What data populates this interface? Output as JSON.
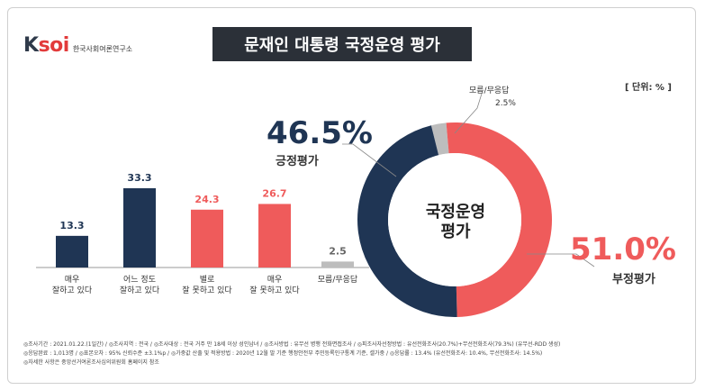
{
  "logo": {
    "mark_a": "K",
    "mark_b": "soi",
    "sub": "한국사회여론연구소"
  },
  "title": "문재인 대통령 국정운영 평가",
  "unit": "[ 단위: % ]",
  "donut": {
    "center_line1": "국정운영",
    "center_line2": "평가",
    "positive": {
      "big": "46.5%",
      "label": "긍정평가",
      "value": 46.5,
      "color": "#1f3554"
    },
    "negative": {
      "big": "51.0%",
      "label": "부정평가",
      "value": 51.0,
      "color": "#ef5b5b"
    },
    "dontknow": {
      "label": "모름/무응답",
      "value_text": "2.5%",
      "value": 2.5,
      "color": "#bdbdbd"
    }
  },
  "chart_data": {
    "type": "bar",
    "categories": [
      "매우\n잘하고 있다",
      "어느 정도\n잘하고 있다",
      "별로\n잘 못하고 있다",
      "매우\n잘 못하고 있다",
      "모름/무응답"
    ],
    "values": [
      13.3,
      33.3,
      24.3,
      26.7,
      2.5
    ],
    "value_labels": [
      "13.3",
      "33.3",
      "24.3",
      "26.7",
      "2.5"
    ],
    "colors": [
      "#1f3554",
      "#1f3554",
      "#ef5b5b",
      "#ef5b5b",
      "#bdbdbd"
    ],
    "label_colors": [
      "#1f3554",
      "#1f3554",
      "#ef5b5b",
      "#ef5b5b",
      "#666666"
    ],
    "title": "",
    "xlabel": "",
    "ylabel": "",
    "ylim": [
      0,
      40
    ]
  },
  "footer": {
    "line1": "◎조사기간 : 2021.01.22.(1일간)  / ◎조사지역 : 전국  / ◎조사대상 : 전국 거주 만 18세 이상 성인남녀  / ◎조사방법 : 유무선 병행 전화면접조사  / ◎피조사자선정방법 : 유선전화조사(20.7%)+무선전화조사(79.3%) (유무선-RDD 생성)",
    "line2": "◎응답완료 : 1,013명  / ◎표본오차 : 95% 신뢰수준 ±3.1%p  / ◎가중값 산출 및 적용방법 : 2020년 12월 말 기준 행정안전부 주민등록인구통계 기준, 셀가중  / ◎응답률 : 13.4% (유선전화조사: 10.4%, 무선전화조사: 14.5%)",
    "line3": "◎자세한 사항은 중앙선거여론조사심의위원회 홈페이지 참조"
  }
}
